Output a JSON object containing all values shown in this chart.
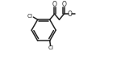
{
  "bg_color": "#ffffff",
  "bond_color": "#222222",
  "text_color": "#222222",
  "line_width": 1.1,
  "cl1_label": "Cl",
  "cl2_label": "Cl",
  "o1_label": "O",
  "o2_label": "O",
  "o3_label": "O"
}
